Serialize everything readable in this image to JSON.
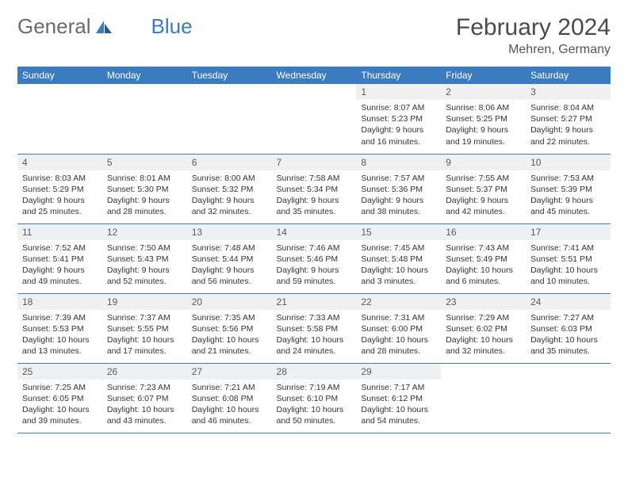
{
  "logo": {
    "part1": "General",
    "part2": "Blue"
  },
  "title": "February 2024",
  "location": "Mehren, Germany",
  "colors": {
    "header_bg": "#3b7bbf",
    "header_text": "#ffffff",
    "daynum_bg": "#eef0f1",
    "border": "#3b7bbf",
    "logo_gray": "#6b6b6b",
    "logo_blue": "#3b7bbf"
  },
  "weekdays": [
    "Sunday",
    "Monday",
    "Tuesday",
    "Wednesday",
    "Thursday",
    "Friday",
    "Saturday"
  ],
  "weeks": [
    [
      {
        "blank": true
      },
      {
        "blank": true
      },
      {
        "blank": true
      },
      {
        "blank": true
      },
      {
        "n": "1",
        "sr": "8:07 AM",
        "ss": "5:23 PM",
        "dl": "9 hours and 16 minutes."
      },
      {
        "n": "2",
        "sr": "8:06 AM",
        "ss": "5:25 PM",
        "dl": "9 hours and 19 minutes."
      },
      {
        "n": "3",
        "sr": "8:04 AM",
        "ss": "5:27 PM",
        "dl": "9 hours and 22 minutes."
      }
    ],
    [
      {
        "n": "4",
        "sr": "8:03 AM",
        "ss": "5:29 PM",
        "dl": "9 hours and 25 minutes."
      },
      {
        "n": "5",
        "sr": "8:01 AM",
        "ss": "5:30 PM",
        "dl": "9 hours and 28 minutes."
      },
      {
        "n": "6",
        "sr": "8:00 AM",
        "ss": "5:32 PM",
        "dl": "9 hours and 32 minutes."
      },
      {
        "n": "7",
        "sr": "7:58 AM",
        "ss": "5:34 PM",
        "dl": "9 hours and 35 minutes."
      },
      {
        "n": "8",
        "sr": "7:57 AM",
        "ss": "5:36 PM",
        "dl": "9 hours and 38 minutes."
      },
      {
        "n": "9",
        "sr": "7:55 AM",
        "ss": "5:37 PM",
        "dl": "9 hours and 42 minutes."
      },
      {
        "n": "10",
        "sr": "7:53 AM",
        "ss": "5:39 PM",
        "dl": "9 hours and 45 minutes."
      }
    ],
    [
      {
        "n": "11",
        "sr": "7:52 AM",
        "ss": "5:41 PM",
        "dl": "9 hours and 49 minutes."
      },
      {
        "n": "12",
        "sr": "7:50 AM",
        "ss": "5:43 PM",
        "dl": "9 hours and 52 minutes."
      },
      {
        "n": "13",
        "sr": "7:48 AM",
        "ss": "5:44 PM",
        "dl": "9 hours and 56 minutes."
      },
      {
        "n": "14",
        "sr": "7:46 AM",
        "ss": "5:46 PM",
        "dl": "9 hours and 59 minutes."
      },
      {
        "n": "15",
        "sr": "7:45 AM",
        "ss": "5:48 PM",
        "dl": "10 hours and 3 minutes."
      },
      {
        "n": "16",
        "sr": "7:43 AM",
        "ss": "5:49 PM",
        "dl": "10 hours and 6 minutes."
      },
      {
        "n": "17",
        "sr": "7:41 AM",
        "ss": "5:51 PM",
        "dl": "10 hours and 10 minutes."
      }
    ],
    [
      {
        "n": "18",
        "sr": "7:39 AM",
        "ss": "5:53 PM",
        "dl": "10 hours and 13 minutes."
      },
      {
        "n": "19",
        "sr": "7:37 AM",
        "ss": "5:55 PM",
        "dl": "10 hours and 17 minutes."
      },
      {
        "n": "20",
        "sr": "7:35 AM",
        "ss": "5:56 PM",
        "dl": "10 hours and 21 minutes."
      },
      {
        "n": "21",
        "sr": "7:33 AM",
        "ss": "5:58 PM",
        "dl": "10 hours and 24 minutes."
      },
      {
        "n": "22",
        "sr": "7:31 AM",
        "ss": "6:00 PM",
        "dl": "10 hours and 28 minutes."
      },
      {
        "n": "23",
        "sr": "7:29 AM",
        "ss": "6:02 PM",
        "dl": "10 hours and 32 minutes."
      },
      {
        "n": "24",
        "sr": "7:27 AM",
        "ss": "6:03 PM",
        "dl": "10 hours and 35 minutes."
      }
    ],
    [
      {
        "n": "25",
        "sr": "7:25 AM",
        "ss": "6:05 PM",
        "dl": "10 hours and 39 minutes."
      },
      {
        "n": "26",
        "sr": "7:23 AM",
        "ss": "6:07 PM",
        "dl": "10 hours and 43 minutes."
      },
      {
        "n": "27",
        "sr": "7:21 AM",
        "ss": "6:08 PM",
        "dl": "10 hours and 46 minutes."
      },
      {
        "n": "28",
        "sr": "7:19 AM",
        "ss": "6:10 PM",
        "dl": "10 hours and 50 minutes."
      },
      {
        "n": "29",
        "sr": "7:17 AM",
        "ss": "6:12 PM",
        "dl": "10 hours and 54 minutes."
      },
      {
        "blank": true
      },
      {
        "blank": true
      }
    ]
  ],
  "labels": {
    "sunrise": "Sunrise:",
    "sunset": "Sunset:",
    "daylight": "Daylight:"
  }
}
